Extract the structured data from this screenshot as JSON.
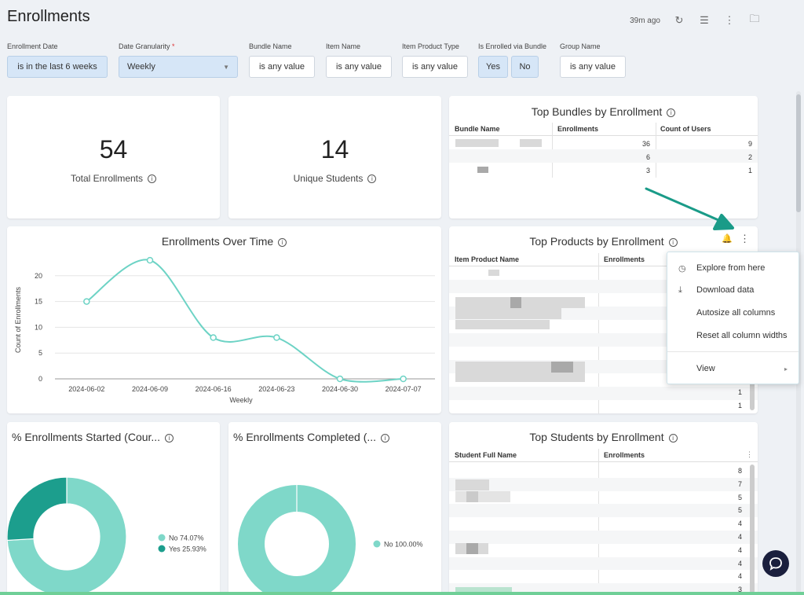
{
  "header": {
    "title": "Enrollments",
    "last_updated": "39m ago",
    "icons": [
      "refresh-icon",
      "filter-icon",
      "more-vertical-icon",
      "folder-icon"
    ]
  },
  "filters": [
    {
      "label": "Enrollment Date",
      "value": "is in the last 6 weeks"
    },
    {
      "label": "Date Granularity",
      "required_mark": "*",
      "value": "Weekly"
    },
    {
      "label": "Bundle Name",
      "value": "is any value"
    },
    {
      "label": "Item Name",
      "value": "is any value"
    },
    {
      "label": "Item Product Type",
      "value": "is any value"
    },
    {
      "label": "Is Enrolled via Bundle",
      "options": [
        "Yes",
        "No"
      ]
    },
    {
      "label": "Group Name",
      "value": "is any value"
    }
  ],
  "kpis": [
    {
      "value": "54",
      "label": "Total Enrollments"
    },
    {
      "value": "14",
      "label": "Unique Students"
    }
  ],
  "top_bundles": {
    "title": "Top Bundles by Enrollment",
    "columns": [
      "Bundle Name",
      "Enrollments",
      "Count of Users"
    ],
    "rows": [
      [
        "36",
        "9"
      ],
      [
        "6",
        "2"
      ],
      [
        "3",
        "1"
      ]
    ]
  },
  "top_products": {
    "title": "Top Products by Enrollment",
    "columns": [
      "Item Product Name",
      "Enrollments"
    ],
    "visible_values": [
      "1",
      "1"
    ]
  },
  "top_students": {
    "title": "Top Students by Enrollment",
    "columns": [
      "Student Full Name",
      "Enrollments"
    ],
    "values": [
      "8",
      "7",
      "5",
      "5",
      "4",
      "4",
      "4",
      "4",
      "4",
      "3"
    ]
  },
  "context_menu": {
    "items": [
      {
        "label": "Explore from here",
        "icon": "compass-icon"
      },
      {
        "label": "Download data",
        "icon": "download-icon"
      },
      {
        "label": "Autosize all columns",
        "icon": ""
      },
      {
        "label": "Reset all column widths",
        "icon": ""
      }
    ],
    "view_label": "View"
  },
  "chart_data": [
    {
      "type": "line",
      "title": "Enrollments Over Time",
      "xlabel": "Weekly",
      "ylabel": "Count of Enrollments",
      "x": [
        "2024-06-02",
        "2024-06-09",
        "2024-06-16",
        "2024-06-23",
        "2024-06-30",
        "2024-07-07"
      ],
      "values": [
        15,
        23,
        8,
        8,
        0,
        0
      ],
      "ylim": [
        0,
        25
      ],
      "yticks": [
        0,
        5,
        10,
        15,
        20
      ],
      "grid": true,
      "color": "#6dd3c5"
    },
    {
      "type": "pie",
      "title": "% Enrollments Started (Cour...",
      "slices": [
        {
          "name": "No",
          "value": 74.07,
          "label": "No 74.07%",
          "color": "#7fd8c9"
        },
        {
          "name": "Yes",
          "value": 25.93,
          "label": "Yes 25.93%",
          "color": "#1c9e8d"
        }
      ],
      "legend": "right"
    },
    {
      "type": "pie",
      "title": "% Enrollments Completed (...",
      "slices": [
        {
          "name": "No",
          "value": 100.0,
          "label": "No 100.00%",
          "color": "#7fd8c9"
        }
      ],
      "legend": "right"
    }
  ],
  "colors": {
    "accent": "#1c9e8d",
    "line": "#6dd3c5",
    "arrow": "#1a9b88"
  }
}
